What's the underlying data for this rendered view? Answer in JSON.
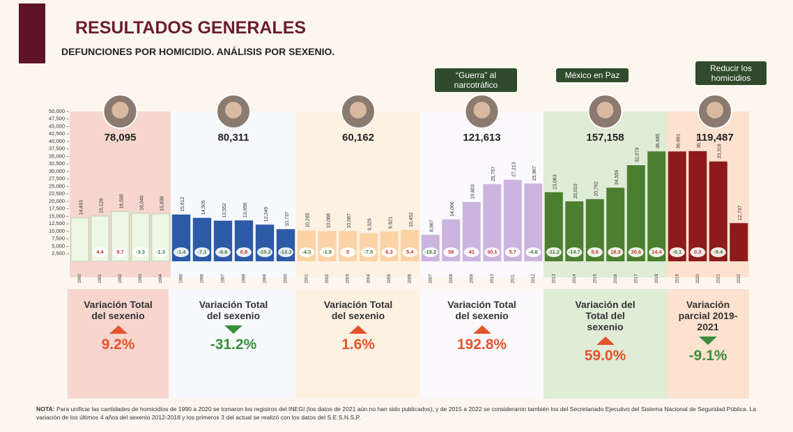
{
  "header": {
    "title": "RESULTADOS GENERALES",
    "subtitle": "DEFUNCIONES POR HOMICIDIO. ANÁLISIS POR SEXENIO."
  },
  "chart_data": {
    "type": "bar",
    "categories": [
      "1990",
      "1991",
      "1992",
      "1993",
      "1994",
      "1995",
      "1996",
      "1997",
      "1998",
      "1999",
      "2000",
      "2001",
      "2002",
      "2003",
      "2004",
      "2005",
      "2006",
      "2007",
      "2008",
      "2009",
      "2010",
      "2011",
      "2012",
      "2013",
      "2014",
      "2015",
      "2016",
      "2017",
      "2018",
      "2019",
      "2020",
      "2021",
      "2022"
    ],
    "values": [
      14493,
      15128,
      16595,
      16040,
      15839,
      15612,
      14505,
      13552,
      13656,
      12249,
      10737,
      10285,
      10088,
      10087,
      9329,
      9921,
      10452,
      8867,
      14006,
      19803,
      25757,
      27213,
      25967,
      23063,
      20010,
      20762,
      24559,
      32079,
      36685,
      36661,
      36773,
      33316,
      12737
    ],
    "value_labels": [
      "14,493",
      "15,128",
      "16,595",
      "16,040",
      "15,839",
      "15,612",
      "14,505",
      "13,552",
      "13,656",
      "12,249",
      "10,737",
      "10,285",
      "10,088",
      "10,087",
      "9,329",
      "9,921",
      "10,452",
      "8,867",
      "14,006",
      "19,803",
      "25,757",
      "27,213",
      "25,967",
      "23,063",
      "20,010",
      "20,762",
      "24,559",
      "32,079",
      "36,685",
      "36,661",
      "36,773",
      "33,316",
      "12,737"
    ],
    "variations": [
      "4.4",
      "9.7",
      "-3.3",
      "-1.3",
      "-1.4",
      "-7.1",
      "-6.6",
      "0.8",
      "-10.3",
      "-12.3",
      "-4.3",
      "-1.9",
      "0",
      "-7.5",
      "6.3",
      "5.4",
      "-15.2",
      "58",
      "41",
      "30.1",
      "5.7",
      "-4.6",
      "-11.2",
      "-14.7",
      "5.6",
      "18.3",
      "30.6",
      "14.4",
      "-0.1",
      "0.3",
      "-9.4"
    ],
    "ylim": [
      0,
      50000
    ],
    "yticks": [
      {
        "value": 2500,
        "label": "2,500"
      },
      {
        "value": 5000,
        "label": "5,000"
      },
      {
        "value": 7500,
        "label": "7,500"
      },
      {
        "value": 10000,
        "label": "10,000"
      },
      {
        "value": 12500,
        "label": "12,500"
      },
      {
        "value": 15000,
        "label": "15,000"
      },
      {
        "value": 17500,
        "label": "17,500"
      },
      {
        "value": 20000,
        "label": "20,000"
      },
      {
        "value": 22500,
        "label": "22,500"
      },
      {
        "value": 25000,
        "label": "25,000"
      },
      {
        "value": 27500,
        "label": "27,500"
      },
      {
        "value": 30000,
        "label": "30,000"
      },
      {
        "value": 32500,
        "label": "32,500"
      },
      {
        "value": 35000,
        "label": "35,000"
      },
      {
        "value": 37500,
        "label": "37,500"
      },
      {
        "value": 40000,
        "label": "40,000"
      },
      {
        "value": 42500,
        "label": "42,500"
      },
      {
        "value": 45000,
        "label": "45,000"
      },
      {
        "value": 47500,
        "label": "47,500"
      },
      {
        "value": 50000,
        "label": "50,000"
      }
    ],
    "groups": [
      {
        "total": "78,095",
        "color": "#eef6e6",
        "background": "#f6d6cf"
      },
      {
        "total": "80,311",
        "color": "#2d5aa6",
        "background": "#f7f9fd"
      },
      {
        "total": "60,162",
        "color": "#fcd3a6",
        "background": "#fdf1e2"
      },
      {
        "total": "121,613",
        "color": "#cbb5de",
        "background": "#fbf9fc"
      },
      {
        "total": "157,158",
        "color": "#4b7f2f",
        "background": "#dfecd6"
      },
      {
        "total": "119,487",
        "color": "#8e1b1b",
        "background": "#fde2cf"
      }
    ]
  },
  "tags": [
    "“Guerra” al narcotráfico",
    "México en Paz",
    "Reducir los homicidios"
  ],
  "panels": [
    {
      "title": "Variación Total del sexenio",
      "value": "9.2%",
      "arrow": "up"
    },
    {
      "title": "Variación Total del sexenio",
      "value": "-31.2%",
      "arrow": "down"
    },
    {
      "title": "Variación Total del sexenio",
      "value": "1.6%",
      "arrow": "up"
    },
    {
      "title": "Variación Total del sexenio",
      "value": "192.8%",
      "arrow": "up"
    },
    {
      "title": "Variación del Total del sexenio",
      "value": "59.0%",
      "arrow": "up"
    },
    {
      "title": "Variación parcial 2019-2021",
      "value": "-9.1%",
      "arrow": "down"
    }
  ],
  "note": {
    "label": "NOTA:",
    "text": "Para unificar las cantidades de homicidios de 1990 a 2020 se tomaron los registros del INEGI (los datos de 2021 aún no han sido publicados), y de 2015 a 2022 se consideraron también los del Secretariado Ejecutivo del Sistema Nacional de Seguridad Pública. La variación de los últimos 4 años del sexenio 2012-2018 y los primeros 3 del actual se realizó con los datos del S.E.S.N.S.P."
  }
}
